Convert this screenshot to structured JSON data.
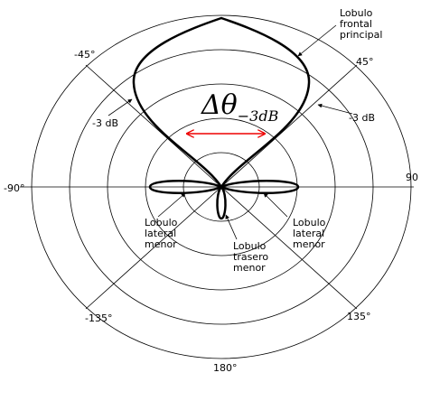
{
  "angles": {
    "m45": "-45°",
    "p45": "45°",
    "m90": "-90°",
    "p90": "90",
    "m135": "-135°",
    "p135": "135°",
    "p180": "180°"
  },
  "annotations": {
    "main_lobe": [
      "Lobulo",
      "frontal",
      "principal"
    ],
    "minus3db_left": "-3 dB",
    "minus3db_right": "-3 dB",
    "beamwidth_symbol": "Δθ",
    "beamwidth_subscript": "−3dB",
    "side_lobe_left": [
      "Lobulo",
      "lateral",
      "menor"
    ],
    "back_lobe": [
      "Lobulo",
      "trasero",
      "menor"
    ],
    "side_lobe_right": [
      "Lobulo",
      "lateral",
      "menor"
    ]
  }
}
